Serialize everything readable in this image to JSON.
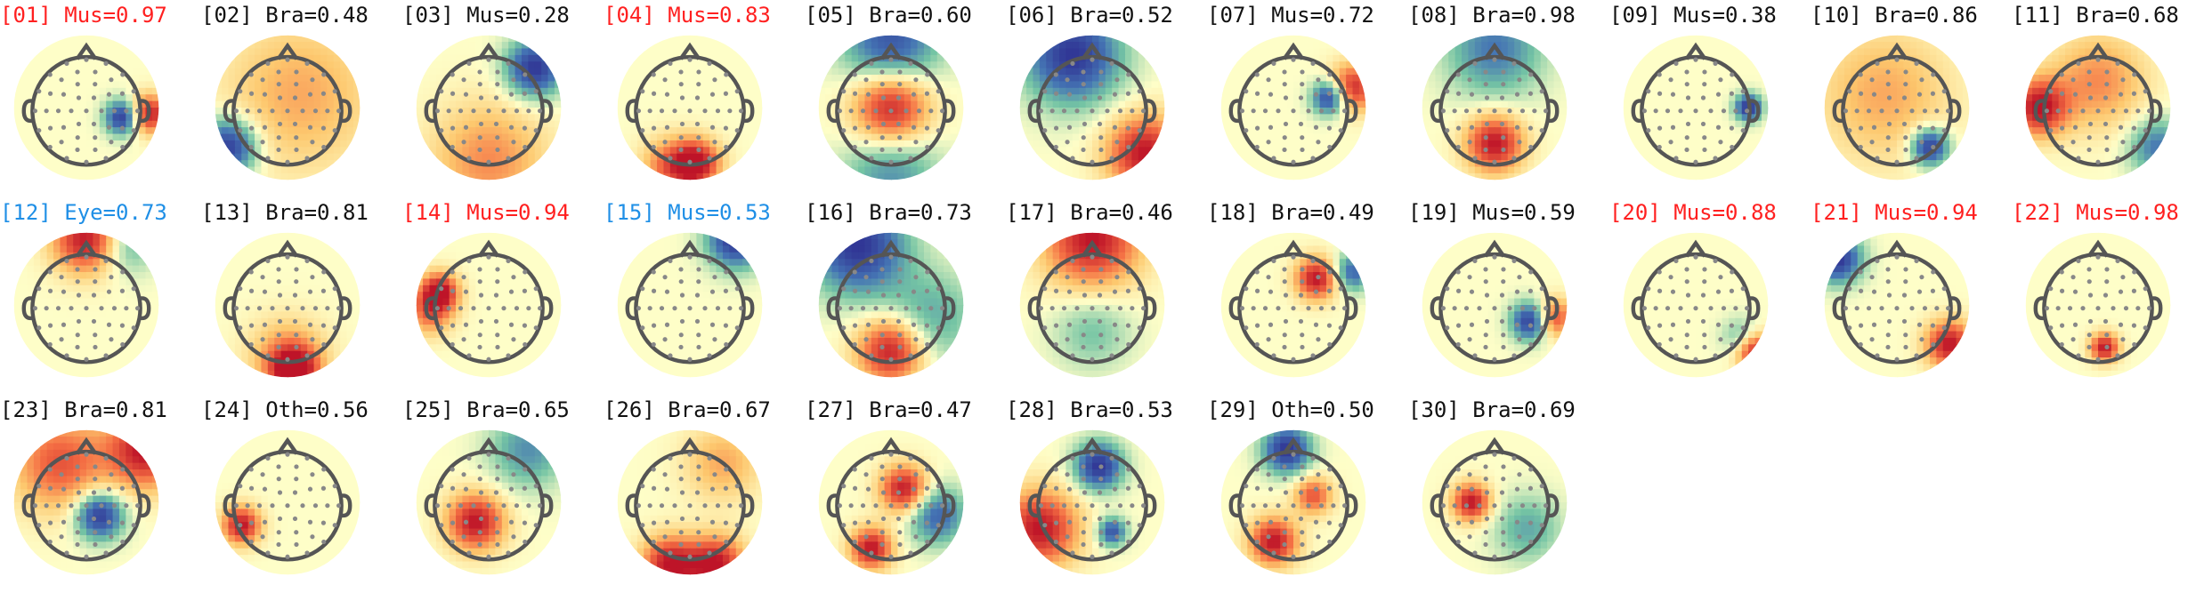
{
  "chart_data": {
    "type": "topomap-grid",
    "label_colors": {
      "default": "#111111",
      "Mus": "#ff2020",
      "Eye": "#1f8fe6"
    },
    "components": [
      {
        "text": "[01] Mus=0.97",
        "category": "Mus",
        "highlight": true
      },
      {
        "text": "[02] Bra=0.48",
        "category": "Bra",
        "highlight": false
      },
      {
        "text": "[03] Mus=0.28",
        "category": "Mus",
        "highlight": false
      },
      {
        "text": "[04] Mus=0.83",
        "category": "Mus",
        "highlight": true
      },
      {
        "text": "[05] Bra=0.60",
        "category": "Bra",
        "highlight": false
      },
      {
        "text": "[06] Bra=0.52",
        "category": "Bra",
        "highlight": false
      },
      {
        "text": "[07] Mus=0.72",
        "category": "Mus",
        "highlight": false
      },
      {
        "text": "[08] Bra=0.98",
        "category": "Bra",
        "highlight": false
      },
      {
        "text": "[09] Mus=0.38",
        "category": "Mus",
        "highlight": false
      },
      {
        "text": "[10] Bra=0.86",
        "category": "Bra",
        "highlight": false
      },
      {
        "text": "[11] Bra=0.68",
        "category": "Bra",
        "highlight": false
      },
      {
        "text": "[12] Eye=0.73",
        "category": "Eye",
        "highlight": true
      },
      {
        "text": "[13] Bra=0.81",
        "category": "Bra",
        "highlight": false
      },
      {
        "text": "[14] Mus=0.94",
        "category": "Mus",
        "highlight": true
      },
      {
        "text": "[15] Mus=0.53",
        "category": "Mus",
        "highlight": true,
        "color_override": "Eye"
      },
      {
        "text": "[16] Bra=0.73",
        "category": "Bra",
        "highlight": false
      },
      {
        "text": "[17] Bra=0.46",
        "category": "Bra",
        "highlight": false
      },
      {
        "text": "[18] Bra=0.49",
        "category": "Bra",
        "highlight": false
      },
      {
        "text": "[19] Mus=0.59",
        "category": "Mus",
        "highlight": false
      },
      {
        "text": "[20] Mus=0.88",
        "category": "Mus",
        "highlight": true
      },
      {
        "text": "[21] Mus=0.94",
        "category": "Mus",
        "highlight": true
      },
      {
        "text": "[22] Mus=0.98",
        "category": "Mus",
        "highlight": true
      },
      {
        "text": "[23] Bra=0.81",
        "category": "Bra",
        "highlight": false
      },
      {
        "text": "[24] Oth=0.56",
        "category": "Oth",
        "highlight": false
      },
      {
        "text": "[25] Bra=0.65",
        "category": "Bra",
        "highlight": false
      },
      {
        "text": "[26] Bra=0.67",
        "category": "Bra",
        "highlight": false
      },
      {
        "text": "[27] Bra=0.47",
        "category": "Bra",
        "highlight": false
      },
      {
        "text": "[28] Bra=0.53",
        "category": "Bra",
        "highlight": false
      },
      {
        "text": "[29] Oth=0.50",
        "category": "Oth",
        "highlight": false
      },
      {
        "text": "[30] Bra=0.69",
        "category": "Bra",
        "highlight": false
      }
    ],
    "colormap": "RdYlBu-like (red high, yellow mid, blue low)",
    "grid": {
      "rows": 3,
      "cols": 11
    }
  }
}
